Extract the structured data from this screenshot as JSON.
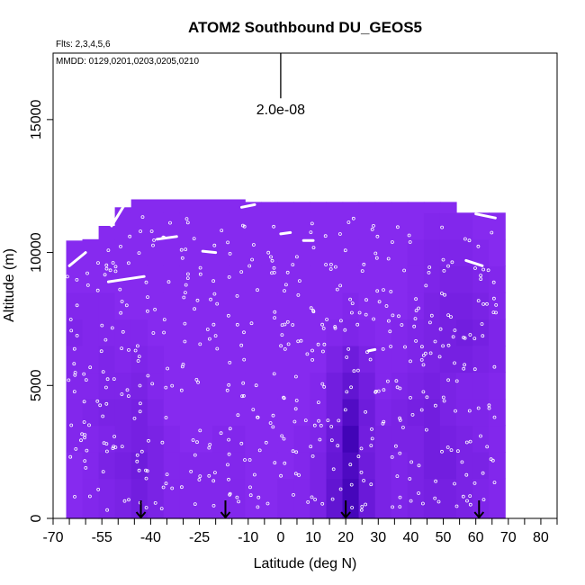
{
  "chart_data": {
    "type": "heatmap",
    "title": "ATOM2 Southbound DU_GEOS5",
    "subtitle_flights": "Flts: 2,3,4,5,6",
    "subtitle_dates": "MMDD: 0129,0201,0203,0205,0210",
    "xlabel": "Latitude (deg N)",
    "ylabel": "Altitude (m)",
    "xlim": [
      -70,
      85
    ],
    "ylim": [
      0,
      17500
    ],
    "xticks": [
      -70,
      -55,
      -40,
      -25,
      -10,
      0,
      10,
      20,
      30,
      40,
      50,
      60,
      70,
      80
    ],
    "xtick_labels": [
      "-70",
      "-55",
      "-40",
      "-25",
      "-10",
      "0",
      "10",
      "20",
      "30",
      "40",
      "50",
      "60",
      "70",
      "80"
    ],
    "xticks_minor": [
      -65,
      -60,
      -50,
      -45,
      -35,
      -30,
      -20,
      -15,
      -5,
      5,
      15,
      25,
      35,
      45,
      55,
      65,
      75,
      85
    ],
    "yticks": [
      0,
      5000,
      10000,
      15000
    ],
    "ytick_labels": [
      "0",
      "5000",
      "10000",
      "15000"
    ],
    "scale_bar": {
      "label": "2.0e-08",
      "x": 0,
      "y_bottom": 15800,
      "y_top": 17500
    },
    "arrows_latitude": [
      -43,
      -17,
      20,
      61
    ],
    "colors": {
      "light": "#8a2cf2",
      "mid": "#7a22e6",
      "dark": "#5a10cc",
      "darkest": "#3a00b0",
      "points": "#ffffff"
    },
    "columns": [
      {
        "x0": -66,
        "x1": -61,
        "ytop": 10450,
        "vals": [
          0.05,
          0.05,
          0.1,
          0.1,
          0.1,
          0.1,
          0.15,
          0.1,
          0.05,
          0.05
        ]
      },
      {
        "x0": -61,
        "x1": -56,
        "ytop": 10550,
        "vals": [
          0.1,
          0.1,
          0.1,
          0.15,
          0.1,
          0.1,
          0.1,
          0.1,
          0.05,
          0.05
        ]
      },
      {
        "x0": -56,
        "x1": -51,
        "ytop": 11000,
        "vals": [
          0.15,
          0.2,
          0.15,
          0.2,
          0.15,
          0.15,
          0.1,
          0.1,
          0.05,
          0.05,
          0.05
        ]
      },
      {
        "x0": -51,
        "x1": -46,
        "ytop": 11700,
        "vals": [
          0.2,
          0.25,
          0.2,
          0.2,
          0.15,
          0.1,
          0.1,
          0.05,
          0.05,
          0.05,
          0.05,
          0.05
        ]
      },
      {
        "x0": -46,
        "x1": -41,
        "ytop": 12000,
        "vals": [
          0.3,
          0.35,
          0.25,
          0.25,
          0.2,
          0.15,
          0.1,
          0.05,
          0.05,
          0.05,
          0.05,
          0.05
        ]
      },
      {
        "x0": -41,
        "x1": -36,
        "ytop": 12000,
        "vals": [
          0.2,
          0.2,
          0.2,
          0.15,
          0.1,
          0.1,
          0.05,
          0.05,
          0.05,
          0.05,
          0.05,
          0.05
        ]
      },
      {
        "x0": -36,
        "x1": -31,
        "ytop": 12000,
        "vals": [
          0.1,
          0.1,
          0.1,
          0.05,
          0.05,
          0.05,
          0.05,
          0.05,
          0.05,
          0.05,
          0.05,
          0.05
        ]
      },
      {
        "x0": -31,
        "x1": -26,
        "ytop": 12000,
        "vals": [
          0.1,
          0.1,
          0.05,
          0.05,
          0.05,
          0.05,
          0.05,
          0.05,
          0.05,
          0.05,
          0.05,
          0.05
        ]
      },
      {
        "x0": -26,
        "x1": -21,
        "ytop": 12000,
        "vals": [
          0.1,
          0.1,
          0.05,
          0.05,
          0.05,
          0.05,
          0.05,
          0.05,
          0.05,
          0.05,
          0.05,
          0.05
        ]
      },
      {
        "x0": -21,
        "x1": -16,
        "ytop": 12000,
        "vals": [
          0.1,
          0.1,
          0.1,
          0.05,
          0.05,
          0.05,
          0.05,
          0.05,
          0.05,
          0.05,
          0.05,
          0.05
        ]
      },
      {
        "x0": -16,
        "x1": -11,
        "ytop": 12000,
        "vals": [
          0.1,
          0.1,
          0.1,
          0.05,
          0.05,
          0.05,
          0.05,
          0.05,
          0.05,
          0.05,
          0.05,
          0.05
        ]
      },
      {
        "x0": -11,
        "x1": -6,
        "ytop": 11900,
        "vals": [
          0.05,
          0.05,
          0.05,
          0.05,
          0.05,
          0.05,
          0.05,
          0.05,
          0.05,
          0.05,
          0.05,
          0.05
        ]
      },
      {
        "x0": -6,
        "x1": -1,
        "ytop": 11900,
        "vals": [
          0.05,
          0.05,
          0.05,
          0.05,
          0.05,
          0.05,
          0.05,
          0.05,
          0.05,
          0.05,
          0.05,
          0.05
        ]
      },
      {
        "x0": -1,
        "x1": 4,
        "ytop": 11900,
        "vals": [
          0.1,
          0.05,
          0.05,
          0.05,
          0.05,
          0.05,
          0.05,
          0.05,
          0.05,
          0.05,
          0.05,
          0.05
        ]
      },
      {
        "x0": 4,
        "x1": 9,
        "ytop": 11900,
        "vals": [
          0.1,
          0.1,
          0.1,
          0.05,
          0.05,
          0.05,
          0.05,
          0.05,
          0.05,
          0.05,
          0.05,
          0.05
        ]
      },
      {
        "x0": 9,
        "x1": 14,
        "ytop": 11900,
        "vals": [
          0.2,
          0.2,
          0.15,
          0.1,
          0.1,
          0.05,
          0.05,
          0.05,
          0.05,
          0.05,
          0.05,
          0.05
        ]
      },
      {
        "x0": 14,
        "x1": 19,
        "ytop": 11900,
        "vals": [
          0.5,
          0.45,
          0.4,
          0.3,
          0.3,
          0.2,
          0.1,
          0.05,
          0.05,
          0.05,
          0.05,
          0.05
        ]
      },
      {
        "x0": 19,
        "x1": 24,
        "ytop": 11900,
        "vals": [
          0.85,
          0.75,
          0.9,
          0.7,
          0.5,
          0.35,
          0.15,
          0.1,
          0.05,
          0.05,
          0.05,
          0.05
        ]
      },
      {
        "x0": 24,
        "x1": 29,
        "ytop": 11900,
        "vals": [
          0.4,
          0.35,
          0.3,
          0.35,
          0.3,
          0.2,
          0.1,
          0.05,
          0.05,
          0.05,
          0.05,
          0.05
        ]
      },
      {
        "x0": 29,
        "x1": 34,
        "ytop": 11900,
        "vals": [
          0.2,
          0.2,
          0.2,
          0.15,
          0.1,
          0.1,
          0.05,
          0.05,
          0.05,
          0.05,
          0.05,
          0.05
        ]
      },
      {
        "x0": 34,
        "x1": 39,
        "ytop": 11900,
        "vals": [
          0.15,
          0.15,
          0.2,
          0.2,
          0.15,
          0.1,
          0.1,
          0.05,
          0.05,
          0.05,
          0.05,
          0.05
        ]
      },
      {
        "x0": 39,
        "x1": 44,
        "ytop": 11900,
        "vals": [
          0.2,
          0.2,
          0.2,
          0.25,
          0.2,
          0.15,
          0.15,
          0.1,
          0.1,
          0.1,
          0.05,
          0.05
        ]
      },
      {
        "x0": 44,
        "x1": 49,
        "ytop": 11900,
        "vals": [
          0.25,
          0.3,
          0.3,
          0.3,
          0.25,
          0.2,
          0.2,
          0.2,
          0.15,
          0.15,
          0.1,
          0.05
        ]
      },
      {
        "x0": 49,
        "x1": 54,
        "ytop": 11900,
        "vals": [
          0.25,
          0.3,
          0.25,
          0.2,
          0.2,
          0.25,
          0.25,
          0.25,
          0.2,
          0.15,
          0.1,
          0.05
        ]
      },
      {
        "x0": 54,
        "x1": 59,
        "ytop": 11500,
        "vals": [
          0.2,
          0.2,
          0.2,
          0.15,
          0.15,
          0.25,
          0.3,
          0.25,
          0.2,
          0.15,
          0.1
        ]
      },
      {
        "x0": 59,
        "x1": 64,
        "ytop": 11500,
        "vals": [
          0.15,
          0.2,
          0.15,
          0.15,
          0.15,
          0.2,
          0.25,
          0.2,
          0.15,
          0.1,
          0.05
        ]
      },
      {
        "x0": 64,
        "x1": 69,
        "ytop": 11500,
        "vals": [
          0.1,
          0.1,
          0.1,
          0.1,
          0.1,
          0.15,
          0.15,
          0.1,
          0.1,
          0.05,
          0.05
        ]
      }
    ],
    "flight_tracks": [
      [
        [
          -65,
          9500
        ],
        [
          -60,
          10000
        ]
      ],
      [
        [
          -52,
          11000
        ],
        [
          -45,
          12400
        ]
      ],
      [
        [
          -53,
          8900
        ],
        [
          -42,
          9100
        ]
      ],
      [
        [
          -38,
          10500
        ],
        [
          -32,
          10600
        ]
      ],
      [
        [
          -12,
          11700
        ],
        [
          -8,
          11800
        ]
      ],
      [
        [
          0,
          10700
        ],
        [
          3,
          10750
        ]
      ],
      [
        [
          7,
          10450
        ],
        [
          10,
          10450
        ]
      ],
      [
        [
          -20,
          10000
        ],
        [
          -24,
          10050
        ]
      ],
      [
        [
          27,
          6300
        ],
        [
          29,
          6350
        ]
      ],
      [
        [
          57,
          9700
        ],
        [
          62,
          9500
        ]
      ],
      [
        [
          60,
          11450
        ],
        [
          66,
          11300
        ]
      ]
    ]
  }
}
